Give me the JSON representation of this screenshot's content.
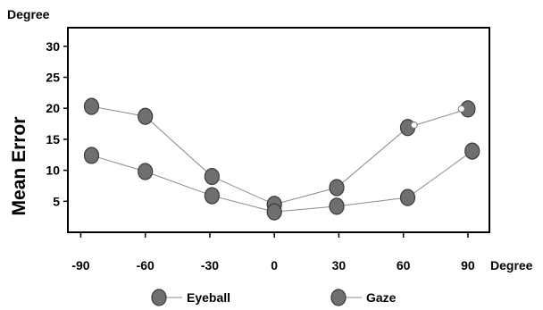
{
  "chart_data": {
    "type": "line",
    "title": "",
    "xlabel": "Degree",
    "ylabel": "Mean Error",
    "y_unit_label": "Degree",
    "x": [
      -90,
      -60,
      -30,
      0,
      30,
      60,
      90
    ],
    "x_tick_labels": [
      "-90",
      "-60",
      "-30",
      "0",
      "30",
      "60",
      "90"
    ],
    "y_ticks": [
      5,
      10,
      15,
      20,
      25,
      30
    ],
    "y_tick_labels": [
      "5",
      "10",
      "15",
      "20",
      "25",
      "30"
    ],
    "xlim": [
      -96,
      100
    ],
    "ylim": [
      0,
      33
    ],
    "grid": false,
    "legend_position": "bottom",
    "series": [
      {
        "name": "Eyeball",
        "x": [
          -85,
          -60,
          -29,
          0,
          29,
          62,
          90
        ],
        "values": [
          20.3,
          18.7,
          9.0,
          4.5,
          7.2,
          16.9,
          19.9
        ],
        "color": "#6f6f6f"
      },
      {
        "name": "Gaze",
        "x": [
          -85,
          -60,
          -29,
          0,
          29,
          62,
          92
        ],
        "values": [
          12.4,
          9.8,
          5.9,
          3.3,
          4.2,
          5.6,
          13.1
        ],
        "color": "#6f6f6f"
      }
    ],
    "annotations": [
      {
        "type": "small-open-marker",
        "x": 65,
        "y": 17.3
      },
      {
        "type": "small-open-marker",
        "x": 87,
        "y": 19.9
      }
    ]
  }
}
